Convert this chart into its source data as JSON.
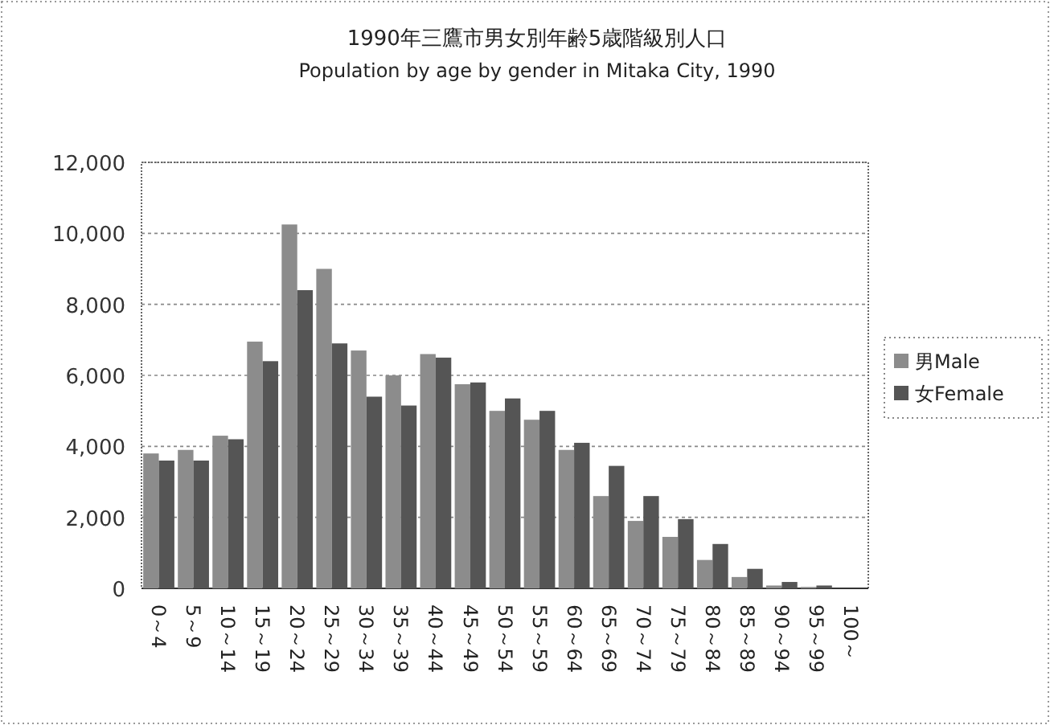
{
  "chart_data": {
    "type": "bar",
    "title": "1990年三鷹市男女別年齢5歳階級別人口",
    "subtitle": "Population by age by gender in Mitaka City, 1990",
    "categories": [
      "0～4",
      "5～9",
      "10～14",
      "15～19",
      "20～24",
      "25～29",
      "30～34",
      "35～39",
      "40～44",
      "45～49",
      "50～54",
      "55～59",
      "60～64",
      "65～69",
      "70～74",
      "75～79",
      "80～84",
      "85～89",
      "90～94",
      "95～99",
      "100～"
    ],
    "series": [
      {
        "name": "男Male",
        "color": "#8c8c8c",
        "values": [
          3800,
          3900,
          4300,
          6950,
          10250,
          9000,
          6700,
          6000,
          6600,
          5750,
          5000,
          4750,
          3900,
          2600,
          1900,
          1450,
          800,
          320,
          80,
          40,
          null
        ]
      },
      {
        "name": "女Female",
        "color": "#555555",
        "values": [
          3600,
          3600,
          4200,
          6400,
          8400,
          6900,
          5400,
          5150,
          6500,
          5800,
          5350,
          5000,
          4100,
          3450,
          2600,
          1950,
          1250,
          550,
          180,
          80,
          null
        ]
      }
    ],
    "ylim": [
      0,
      12000
    ],
    "yticks": [
      {
        "value": 0,
        "label": "0"
      },
      {
        "value": 2000,
        "label": "2,000"
      },
      {
        "value": 4000,
        "label": "4,000"
      },
      {
        "value": 6000,
        "label": "6,000"
      },
      {
        "value": 8000,
        "label": "8,000"
      },
      {
        "value": 10000,
        "label": "10,000"
      },
      {
        "value": 12000,
        "label": "12,000"
      }
    ],
    "grid": "y",
    "legend": "right"
  }
}
